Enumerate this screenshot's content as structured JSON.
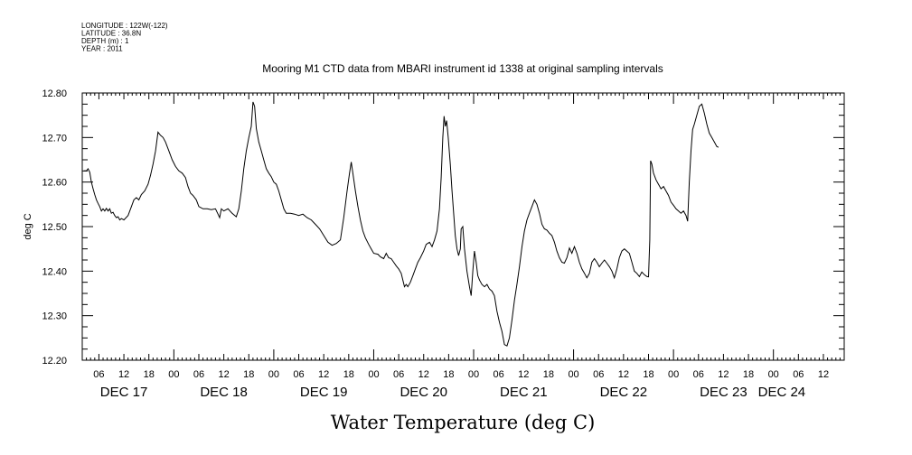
{
  "metadata_lines": [
    "LONGITUDE : 122W(-122)",
    "LATITUDE : 36.8N",
    "DEPTH (m) : 1",
    "YEAR : 2011"
  ],
  "chart_data": {
    "type": "line",
    "title": "Mooring M1 CTD data from MBARI instrument id 1338 at original sampling intervals",
    "xlabel": "Water Temperature (deg C)",
    "ylabel": "deg C",
    "x_unit": "hours since DEC 17 00:00",
    "xlim": [
      -10,
      173
    ],
    "ylim": [
      12.2,
      12.8
    ],
    "yticks": [
      12.2,
      12.3,
      12.4,
      12.5,
      12.6,
      12.7,
      12.8
    ],
    "ytick_labels": [
      "12.20",
      "12.30",
      "12.40",
      "12.50",
      "12.60",
      "12.70",
      "12.80"
    ],
    "hour_ticks": [
      {
        "x": -6,
        "label": "06"
      },
      {
        "x": 0,
        "label": "12"
      },
      {
        "x": 6,
        "label": "18"
      },
      {
        "x": 12,
        "label": "00"
      },
      {
        "x": 18,
        "label": "06"
      },
      {
        "x": 24,
        "label": "12"
      },
      {
        "x": 30,
        "label": "18"
      },
      {
        "x": 36,
        "label": "00"
      },
      {
        "x": 42,
        "label": "06"
      },
      {
        "x": 48,
        "label": "12"
      },
      {
        "x": 54,
        "label": "18"
      },
      {
        "x": 60,
        "label": "00"
      },
      {
        "x": 66,
        "label": "06"
      },
      {
        "x": 72,
        "label": "12"
      },
      {
        "x": 78,
        "label": "18"
      },
      {
        "x": 84,
        "label": "00"
      },
      {
        "x": 90,
        "label": "06"
      },
      {
        "x": 96,
        "label": "12"
      },
      {
        "x": 102,
        "label": "18"
      },
      {
        "x": 108,
        "label": "00"
      },
      {
        "x": 114,
        "label": "06"
      },
      {
        "x": 120,
        "label": "12"
      },
      {
        "x": 126,
        "label": "18"
      },
      {
        "x": 132,
        "label": "00"
      },
      {
        "x": 138,
        "label": "06"
      },
      {
        "x": 144,
        "label": "12"
      },
      {
        "x": 150,
        "label": "18"
      },
      {
        "x": 156,
        "label": "00"
      },
      {
        "x": 162,
        "label": "06"
      },
      {
        "x": 168,
        "label": "12"
      }
    ],
    "day_labels": [
      {
        "x": 0,
        "label": "DEC 17"
      },
      {
        "x": 24,
        "label": "DEC 18"
      },
      {
        "x": 48,
        "label": "DEC 19"
      },
      {
        "x": 72,
        "label": "DEC 20"
      },
      {
        "x": 96,
        "label": "DEC 21"
      },
      {
        "x": 120,
        "label": "DEC 22"
      },
      {
        "x": 144,
        "label": "DEC 23"
      },
      {
        "x": 158,
        "label": "DEC 24"
      }
    ],
    "series": [
      {
        "points": [
          [
            -9.6,
            12.625
          ],
          [
            -9.0,
            12.625
          ],
          [
            -8.6,
            12.63
          ],
          [
            -8.2,
            12.622
          ],
          [
            -7.8,
            12.6
          ],
          [
            -7.4,
            12.585
          ],
          [
            -7.0,
            12.572
          ],
          [
            -6.6,
            12.56
          ],
          [
            -6.2,
            12.552
          ],
          [
            -5.8,
            12.545
          ],
          [
            -5.4,
            12.535
          ],
          [
            -5.0,
            12.54
          ],
          [
            -4.6,
            12.535
          ],
          [
            -4.2,
            12.541
          ],
          [
            -3.8,
            12.535
          ],
          [
            -3.4,
            12.54
          ],
          [
            -3.0,
            12.53
          ],
          [
            -2.6,
            12.532
          ],
          [
            -2.2,
            12.525
          ],
          [
            -1.8,
            12.52
          ],
          [
            -1.4,
            12.522
          ],
          [
            -1.0,
            12.515
          ],
          [
            -0.6,
            12.518
          ],
          [
            0.0,
            12.515
          ],
          [
            1.0,
            12.525
          ],
          [
            1.8,
            12.545
          ],
          [
            2.4,
            12.56
          ],
          [
            3.0,
            12.565
          ],
          [
            3.6,
            12.56
          ],
          [
            4.2,
            12.572
          ],
          [
            5.0,
            12.58
          ],
          [
            5.8,
            12.595
          ],
          [
            6.4,
            12.615
          ],
          [
            7.0,
            12.64
          ],
          [
            7.6,
            12.67
          ],
          [
            8.2,
            12.712
          ],
          [
            8.8,
            12.705
          ],
          [
            9.4,
            12.7
          ],
          [
            10.0,
            12.69
          ],
          [
            10.8,
            12.67
          ],
          [
            11.6,
            12.65
          ],
          [
            12.4,
            12.635
          ],
          [
            13.2,
            12.625
          ],
          [
            14.0,
            12.62
          ],
          [
            14.8,
            12.61
          ],
          [
            15.4,
            12.59
          ],
          [
            16.0,
            12.575
          ],
          [
            16.6,
            12.57
          ],
          [
            17.4,
            12.56
          ],
          [
            18.0,
            12.545
          ],
          [
            19.0,
            12.54
          ],
          [
            20.0,
            12.54
          ],
          [
            21.0,
            12.538
          ],
          [
            22.0,
            12.54
          ],
          [
            22.6,
            12.528
          ],
          [
            23.0,
            12.52
          ],
          [
            23.4,
            12.54
          ],
          [
            24.0,
            12.535
          ],
          [
            25.0,
            12.54
          ],
          [
            26.0,
            12.53
          ],
          [
            27.0,
            12.522
          ],
          [
            27.6,
            12.54
          ],
          [
            28.2,
            12.58
          ],
          [
            28.8,
            12.63
          ],
          [
            29.4,
            12.67
          ],
          [
            30.0,
            12.7
          ],
          [
            30.6,
            12.725
          ],
          [
            31.0,
            12.78
          ],
          [
            31.4,
            12.77
          ],
          [
            31.8,
            12.72
          ],
          [
            32.4,
            12.69
          ],
          [
            33.0,
            12.67
          ],
          [
            33.6,
            12.65
          ],
          [
            34.2,
            12.63
          ],
          [
            34.8,
            12.62
          ],
          [
            35.4,
            12.612
          ],
          [
            36.0,
            12.6
          ],
          [
            36.6,
            12.595
          ],
          [
            37.2,
            12.58
          ],
          [
            37.8,
            12.56
          ],
          [
            38.4,
            12.54
          ],
          [
            39.0,
            12.53
          ],
          [
            40.0,
            12.53
          ],
          [
            41.0,
            12.528
          ],
          [
            42.0,
            12.525
          ],
          [
            43.0,
            12.528
          ],
          [
            44.0,
            12.52
          ],
          [
            45.0,
            12.515
          ],
          [
            46.0,
            12.505
          ],
          [
            47.0,
            12.495
          ],
          [
            48.0,
            12.48
          ],
          [
            49.0,
            12.465
          ],
          [
            50.0,
            12.458
          ],
          [
            51.0,
            12.462
          ],
          [
            52.0,
            12.47
          ],
          [
            52.8,
            12.52
          ],
          [
            53.6,
            12.58
          ],
          [
            54.2,
            12.62
          ],
          [
            54.6,
            12.645
          ],
          [
            55.0,
            12.62
          ],
          [
            55.6,
            12.58
          ],
          [
            56.2,
            12.545
          ],
          [
            56.8,
            12.515
          ],
          [
            57.4,
            12.49
          ],
          [
            58.0,
            12.475
          ],
          [
            58.8,
            12.46
          ],
          [
            59.4,
            12.45
          ],
          [
            60.0,
            12.44
          ],
          [
            61.0,
            12.438
          ],
          [
            61.6,
            12.432
          ],
          [
            62.4,
            12.428
          ],
          [
            63.0,
            12.44
          ],
          [
            63.6,
            12.43
          ],
          [
            64.2,
            12.428
          ],
          [
            64.8,
            12.42
          ],
          [
            65.4,
            12.412
          ],
          [
            66.0,
            12.405
          ],
          [
            66.6,
            12.395
          ],
          [
            67.0,
            12.38
          ],
          [
            67.4,
            12.365
          ],
          [
            67.8,
            12.37
          ],
          [
            68.2,
            12.365
          ],
          [
            68.8,
            12.375
          ],
          [
            69.4,
            12.39
          ],
          [
            70.0,
            12.405
          ],
          [
            70.6,
            12.42
          ],
          [
            71.2,
            12.43
          ],
          [
            72.0,
            12.445
          ],
          [
            72.6,
            12.46
          ],
          [
            73.4,
            12.465
          ],
          [
            74.0,
            12.455
          ],
          [
            74.6,
            12.47
          ],
          [
            75.2,
            12.49
          ],
          [
            75.8,
            12.54
          ],
          [
            76.2,
            12.61
          ],
          [
            76.6,
            12.7
          ],
          [
            76.9,
            12.748
          ],
          [
            77.2,
            12.725
          ],
          [
            77.5,
            12.738
          ],
          [
            77.9,
            12.7
          ],
          [
            78.4,
            12.64
          ],
          [
            78.8,
            12.58
          ],
          [
            79.2,
            12.53
          ],
          [
            79.6,
            12.48
          ],
          [
            80.0,
            12.45
          ],
          [
            80.4,
            12.435
          ],
          [
            80.8,
            12.45
          ],
          [
            81.0,
            12.495
          ],
          [
            81.4,
            12.5
          ],
          [
            81.8,
            12.45
          ],
          [
            82.4,
            12.4
          ],
          [
            83.0,
            12.365
          ],
          [
            83.4,
            12.345
          ],
          [
            83.8,
            12.4
          ],
          [
            84.2,
            12.445
          ],
          [
            84.6,
            12.42
          ],
          [
            85.0,
            12.39
          ],
          [
            85.4,
            12.38
          ],
          [
            86.0,
            12.37
          ],
          [
            86.6,
            12.365
          ],
          [
            87.2,
            12.37
          ],
          [
            87.8,
            12.36
          ],
          [
            88.4,
            12.355
          ],
          [
            89.0,
            12.345
          ],
          [
            89.6,
            12.31
          ],
          [
            90.2,
            12.285
          ],
          [
            90.8,
            12.265
          ],
          [
            91.4,
            12.235
          ],
          [
            92.0,
            12.232
          ],
          [
            92.6,
            12.25
          ],
          [
            93.2,
            12.29
          ],
          [
            93.8,
            12.335
          ],
          [
            94.4,
            12.37
          ],
          [
            95.0,
            12.41
          ],
          [
            95.6,
            12.455
          ],
          [
            96.2,
            12.49
          ],
          [
            96.8,
            12.515
          ],
          [
            97.4,
            12.53
          ],
          [
            98.0,
            12.545
          ],
          [
            98.6,
            12.56
          ],
          [
            99.2,
            12.55
          ],
          [
            99.8,
            12.53
          ],
          [
            100.4,
            12.505
          ],
          [
            101.0,
            12.495
          ],
          [
            101.6,
            12.492
          ],
          [
            102.2,
            12.485
          ],
          [
            102.8,
            12.48
          ],
          [
            103.4,
            12.465
          ],
          [
            104.0,
            12.445
          ],
          [
            104.6,
            12.43
          ],
          [
            105.2,
            12.42
          ],
          [
            105.8,
            12.418
          ],
          [
            106.4,
            12.43
          ],
          [
            107.0,
            12.452
          ],
          [
            107.6,
            12.44
          ],
          [
            108.2,
            12.455
          ],
          [
            108.8,
            12.44
          ],
          [
            109.4,
            12.42
          ],
          [
            110.0,
            12.405
          ],
          [
            110.6,
            12.395
          ],
          [
            111.2,
            12.385
          ],
          [
            111.8,
            12.395
          ],
          [
            112.4,
            12.42
          ],
          [
            113.0,
            12.428
          ],
          [
            113.6,
            12.42
          ],
          [
            114.2,
            12.41
          ],
          [
            114.8,
            12.418
          ],
          [
            115.4,
            12.425
          ],
          [
            116.0,
            12.418
          ],
          [
            116.6,
            12.41
          ],
          [
            117.2,
            12.4
          ],
          [
            117.8,
            12.385
          ],
          [
            118.4,
            12.405
          ],
          [
            119.0,
            12.43
          ],
          [
            119.6,
            12.445
          ],
          [
            120.2,
            12.45
          ],
          [
            120.8,
            12.445
          ],
          [
            121.4,
            12.44
          ],
          [
            122.0,
            12.42
          ],
          [
            122.6,
            12.4
          ],
          [
            123.2,
            12.395
          ],
          [
            123.8,
            12.388
          ],
          [
            124.4,
            12.398
          ],
          [
            125.0,
            12.392
          ],
          [
            125.6,
            12.388
          ],
          [
            126.0,
            12.387
          ],
          [
            126.3,
            12.47
          ],
          [
            126.5,
            12.648
          ],
          [
            126.8,
            12.64
          ],
          [
            127.2,
            12.62
          ],
          [
            127.8,
            12.605
          ],
          [
            128.4,
            12.595
          ],
          [
            129.0,
            12.585
          ],
          [
            129.6,
            12.59
          ],
          [
            130.2,
            12.58
          ],
          [
            130.8,
            12.57
          ],
          [
            131.4,
            12.555
          ],
          [
            132.0,
            12.548
          ],
          [
            132.6,
            12.54
          ],
          [
            133.2,
            12.535
          ],
          [
            133.8,
            12.53
          ],
          [
            134.4,
            12.535
          ],
          [
            135.0,
            12.525
          ],
          [
            135.4,
            12.512
          ],
          [
            135.8,
            12.6
          ],
          [
            136.2,
            12.67
          ],
          [
            136.6,
            12.718
          ],
          [
            137.0,
            12.73
          ],
          [
            137.6,
            12.75
          ],
          [
            138.2,
            12.77
          ],
          [
            138.8,
            12.775
          ],
          [
            139.4,
            12.755
          ],
          [
            140.0,
            12.73
          ],
          [
            140.6,
            12.71
          ],
          [
            141.2,
            12.7
          ],
          [
            141.8,
            12.69
          ],
          [
            142.4,
            12.68
          ],
          [
            142.8,
            12.678
          ]
        ]
      }
    ]
  }
}
